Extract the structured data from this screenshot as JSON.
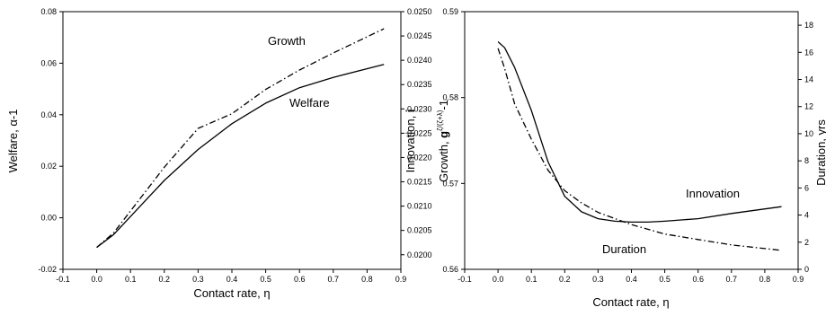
{
  "chart_data": [
    {
      "type": "line",
      "xlabel": "Contact rate, η",
      "ylabel": "Welfare, α-1",
      "y2label": "Growth, g^{ζ/(ζ+λ)}-1",
      "xlim": [
        -0.1,
        0.9
      ],
      "ylim": [
        -0.02,
        0.08
      ],
      "y2lim": [
        0.0197,
        0.025
      ],
      "x_ticks": [
        "-0.1",
        "0.0",
        "0.1",
        "0.2",
        "0.3",
        "0.4",
        "0.5",
        "0.6",
        "0.7",
        "0.8",
        "0.9"
      ],
      "y_ticks": [
        "-0.02",
        "0.00",
        "0.02",
        "0.04",
        "0.06",
        "0.08"
      ],
      "y2_ticks": [
        "0.0200",
        "0.0205",
        "0.0210",
        "0.0215",
        "0.0220",
        "0.0225",
        "0.0230",
        "0.0235",
        "0.0240",
        "0.0245",
        "0.0250"
      ],
      "grid": false,
      "series": [
        {
          "name": "Welfare",
          "axis": "left",
          "style": "solid",
          "x": [
            0.0,
            0.05,
            0.1,
            0.15,
            0.2,
            0.3,
            0.4,
            0.5,
            0.6,
            0.7,
            0.85
          ],
          "values": [
            -0.0115,
            -0.0065,
            0.0005,
            0.0075,
            0.0145,
            0.0265,
            0.0365,
            0.0445,
            0.0505,
            0.0545,
            0.0595
          ]
        },
        {
          "name": "Growth",
          "axis": "right",
          "style": "dashdot",
          "x": [
            0.0,
            0.05,
            0.1,
            0.15,
            0.2,
            0.3,
            0.4,
            0.5,
            0.6,
            0.7,
            0.85
          ],
          "values": [
            0.02015,
            0.02045,
            0.0209,
            0.02135,
            0.0218,
            0.0226,
            0.0229,
            0.0234,
            0.0238,
            0.02415,
            0.02465
          ]
        }
      ],
      "annotations": [
        {
          "text": "Growth",
          "series": "Growth",
          "x": 0.5,
          "y": 0.07
        },
        {
          "text": "Welfare",
          "series": "Welfare",
          "x": 0.58,
          "y": 0.0445
        }
      ]
    },
    {
      "type": "line",
      "xlabel": "Contact rate, η",
      "ylabel": "Innovation, i",
      "y2label": "Duration, yrs",
      "xlim": [
        -0.1,
        0.9
      ],
      "ylim": [
        0.56,
        0.59
      ],
      "y2lim": [
        0,
        19
      ],
      "x_ticks": [
        "-0.1",
        "0.0",
        "0.1",
        "0.2",
        "0.3",
        "0.4",
        "0.5",
        "0.6",
        "0.7",
        "0.8",
        "0.9"
      ],
      "y_ticks": [
        "0.56",
        "0.57",
        "0.58",
        "0.59"
      ],
      "y2_ticks": [
        "0",
        "2",
        "4",
        "6",
        "8",
        "10",
        "12",
        "14",
        "16",
        "18"
      ],
      "grid": false,
      "series": [
        {
          "name": "Innovation",
          "axis": "left",
          "style": "solid",
          "x": [
            0.0,
            0.02,
            0.05,
            0.1,
            0.15,
            0.2,
            0.25,
            0.3,
            0.35,
            0.4,
            0.45,
            0.5,
            0.6,
            0.7,
            0.85
          ],
          "values": [
            0.5865,
            0.5858,
            0.5835,
            0.5785,
            0.5725,
            0.5685,
            0.5667,
            0.5659,
            0.5656,
            0.5655,
            0.5655,
            0.5656,
            0.5659,
            0.5665,
            0.5673
          ]
        },
        {
          "name": "Duration",
          "axis": "right",
          "style": "dashdot",
          "x": [
            0.0,
            0.02,
            0.05,
            0.1,
            0.15,
            0.2,
            0.25,
            0.3,
            0.4,
            0.5,
            0.6,
            0.7,
            0.85
          ],
          "values": [
            16.3,
            14.8,
            12.2,
            9.6,
            7.3,
            5.8,
            4.9,
            4.2,
            3.3,
            2.6,
            2.2,
            1.8,
            1.4
          ]
        }
      ],
      "annotations": [
        {
          "text": "Innovation",
          "series": "Innovation",
          "x": 0.65,
          "y": 0.5683
        },
        {
          "text": "Duration",
          "series": "Duration",
          "x": 0.42,
          "y": 0.5623
        }
      ]
    }
  ]
}
